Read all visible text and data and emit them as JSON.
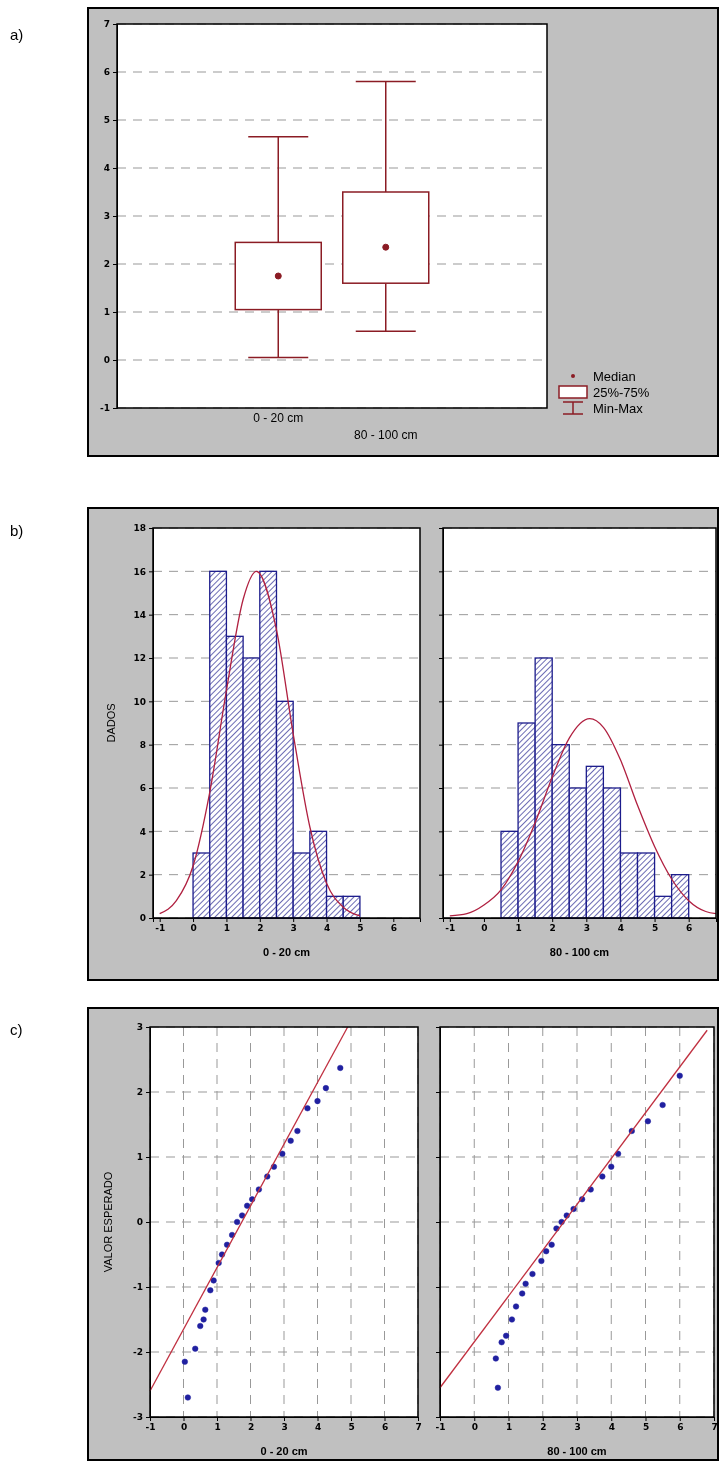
{
  "chart_data": [
    {
      "type": "box",
      "title": "a)",
      "categories": [
        "0 - 20 cm",
        "80 - 100 cm"
      ],
      "color": "#8b1c24",
      "boxes": [
        {
          "low": 0.05,
          "q1": 1.05,
          "median": 1.75,
          "q3": 2.45,
          "high": 4.65
        },
        {
          "low": 0.6,
          "q1": 1.6,
          "median": 2.35,
          "q3": 3.5,
          "high": 5.8
        }
      ],
      "ylim": [
        -1,
        7
      ],
      "yticks": [
        -1,
        0,
        1,
        2,
        3,
        4,
        5,
        6,
        7
      ],
      "grid": "y",
      "annotations": [
        "Median",
        "25%-75%",
        "Min-Max"
      ]
    },
    {
      "type": "histogram",
      "annotations": [
        "b)"
      ],
      "xlabel": "0 - 20 cm",
      "ylabel": "DADOS",
      "bins": [
        0,
        0.5,
        1,
        1.5,
        2,
        2.5,
        3,
        3.5,
        4,
        4.5,
        5
      ],
      "xlim": [
        -1.2,
        6.8
      ],
      "xticks": [
        -1,
        0,
        1,
        2,
        3,
        4,
        5,
        6
      ],
      "ylim": [
        0,
        18
      ],
      "yticks": [
        0,
        2,
        4,
        6,
        8,
        10,
        12,
        14,
        16,
        18
      ],
      "grid": "y",
      "series": [
        {
          "type": "histogram",
          "color": "#1c1c8c",
          "values": [
            3,
            16,
            13,
            12,
            16,
            10,
            3,
            4,
            1,
            1
          ]
        },
        {
          "type": "line",
          "color": "#b02040",
          "x": [
            -1,
            -0.5,
            0,
            0.5,
            1,
            1.5,
            1.9,
            2.5,
            3,
            3.5,
            4,
            4.5,
            5
          ],
          "values": [
            0.2,
            0.8,
            2.4,
            5.8,
            10.5,
            14.7,
            16,
            13.3,
            8.5,
            4.2,
            1.6,
            0.5,
            0.1
          ]
        }
      ]
    },
    {
      "type": "histogram",
      "xlabel": "80 - 100 cm",
      "bins": [
        0.5,
        1,
        1.5,
        2,
        2.5,
        3,
        3.5,
        4,
        4.5,
        5,
        5.5,
        6
      ],
      "xlim": [
        -1.2,
        6.8
      ],
      "xticks": [
        -1,
        0,
        1,
        2,
        3,
        4,
        5,
        6
      ],
      "ylim": [
        0,
        18
      ],
      "yticks": [
        0,
        2,
        4,
        6,
        8,
        10,
        12,
        14,
        16,
        18
      ],
      "grid": "y",
      "tick_labels": "x",
      "series": [
        {
          "type": "histogram",
          "color": "#1c1c8c",
          "values": [
            4,
            9,
            12,
            8,
            6,
            7,
            6,
            3,
            3,
            1,
            2
          ]
        },
        {
          "type": "line",
          "color": "#b02040",
          "x": [
            -1,
            -0.5,
            0,
            0.5,
            1,
            1.5,
            2,
            2.5,
            3.1,
            3.5,
            4,
            4.5,
            5,
            5.5,
            6,
            6.5,
            6.8
          ],
          "values": [
            0.1,
            0.2,
            0.6,
            1.3,
            2.6,
            4.4,
            6.5,
            8.3,
            9.2,
            8.8,
            7.3,
            5.2,
            3.3,
            1.8,
            0.8,
            0.3,
            0.2
          ]
        }
      ]
    },
    {
      "type": "scatter",
      "annotations": [
        "c)"
      ],
      "xlabel": "0 - 20 cm",
      "ylabel": "VALOR ESPERADO",
      "xlim": [
        -1,
        7
      ],
      "xticks": [
        -1,
        0,
        1,
        2,
        3,
        4,
        5,
        6,
        7
      ],
      "ylim": [
        -3,
        3
      ],
      "yticks": [
        -3,
        -2,
        -1,
        0,
        1,
        2,
        3
      ],
      "grid": true,
      "series": [
        {
          "type": "scatter",
          "marker": "circle",
          "color": "#2020a0",
          "x": [
            0.13,
            0.04,
            0.35,
            0.5,
            0.6,
            0.65,
            0.8,
            0.9,
            1.05,
            1.15,
            1.3,
            1.45,
            1.6,
            1.75,
            1.9,
            2.05,
            2.25,
            2.5,
            2.7,
            2.95,
            3.2,
            3.4,
            3.7,
            4.0,
            4.25,
            4.68
          ],
          "values": [
            -2.7,
            -2.15,
            -1.95,
            -1.6,
            -1.5,
            -1.35,
            -1.05,
            -0.9,
            -0.63,
            -0.5,
            -0.35,
            -0.2,
            0.0,
            0.1,
            0.25,
            0.35,
            0.5,
            0.7,
            0.85,
            1.05,
            1.25,
            1.4,
            1.75,
            1.86,
            2.06,
            2.37
          ]
        },
        {
          "type": "line",
          "color": "#c03040",
          "x": [
            -1,
            4.9
          ],
          "values": [
            -2.6,
            3
          ]
        }
      ]
    },
    {
      "type": "scatter",
      "xlabel": "80 - 100 cm",
      "xlim": [
        -1,
        7
      ],
      "xticks": [
        -1,
        0,
        1,
        2,
        3,
        4,
        5,
        6,
        7
      ],
      "ylim": [
        -3,
        3
      ],
      "yticks": [
        -3,
        -2,
        -1,
        0,
        1,
        2,
        3
      ],
      "grid": true,
      "tick_labels": "x",
      "series": [
        {
          "type": "scatter",
          "marker": "circle",
          "color": "#2020a0",
          "x": [
            0.69,
            0.63,
            0.8,
            0.93,
            1.1,
            1.22,
            1.4,
            1.5,
            1.7,
            1.96,
            2.1,
            2.26,
            2.4,
            2.55,
            2.7,
            2.9,
            3.15,
            3.4,
            3.74,
            4.0,
            4.2,
            4.6,
            5.07,
            5.5,
            6.0
          ],
          "values": [
            -2.55,
            -2.1,
            -1.85,
            -1.75,
            -1.5,
            -1.3,
            -1.1,
            -0.95,
            -0.8,
            -0.6,
            -0.45,
            -0.35,
            -0.1,
            0.0,
            0.1,
            0.2,
            0.35,
            0.5,
            0.7,
            0.85,
            1.05,
            1.4,
            1.55,
            1.8,
            2.25
          ]
        },
        {
          "type": "line",
          "color": "#c03040",
          "x": [
            -1,
            6.8
          ],
          "values": [
            -2.55,
            2.95
          ]
        }
      ]
    }
  ]
}
